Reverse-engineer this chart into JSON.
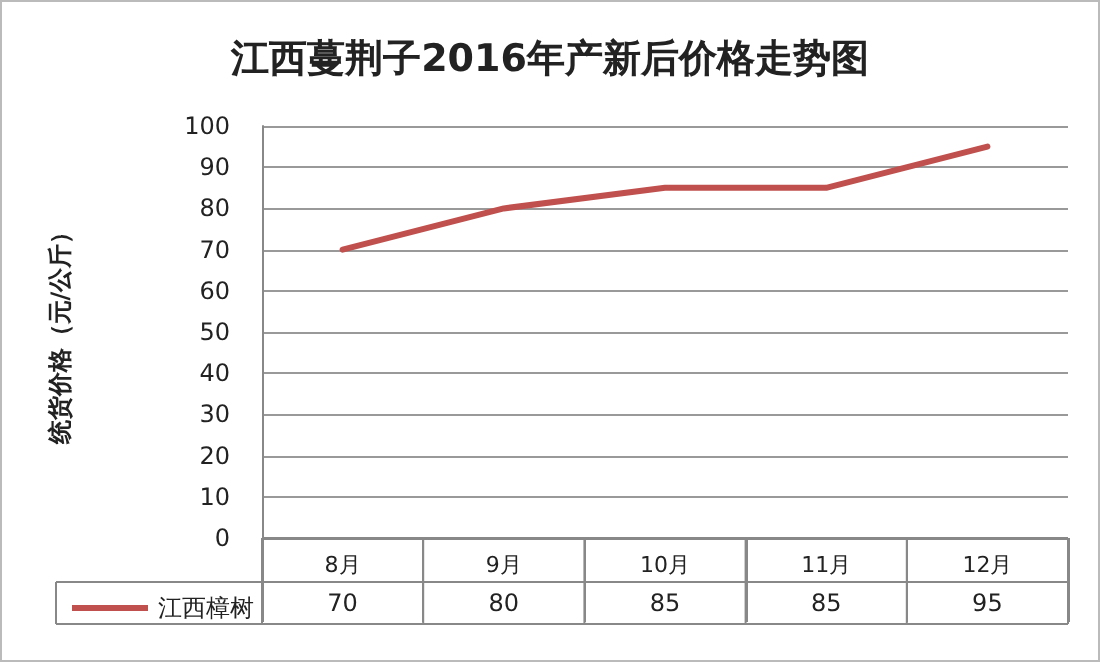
{
  "chart_data": {
    "type": "line",
    "title": "江西蔓荆子2016年产新后价格走势图",
    "ylabel": "统货价格（元/公斤）",
    "categories": [
      "8月",
      "9月",
      "10月",
      "11月",
      "12月"
    ],
    "series": [
      {
        "name": "江西樟树",
        "color": "#c0504d",
        "values": [
          70,
          80,
          85,
          85,
          95
        ]
      }
    ],
    "ylim": [
      0,
      100
    ],
    "yticks": [
      0,
      10,
      20,
      30,
      40,
      50,
      60,
      70,
      80,
      90,
      100
    ],
    "grid": "y",
    "legend": "bottom left",
    "data_labels": true,
    "marker": "none",
    "line_style": "solid"
  }
}
